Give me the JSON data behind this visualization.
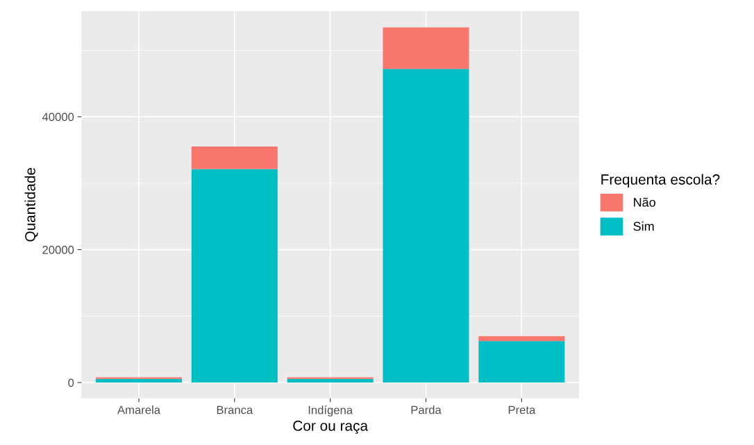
{
  "chart_data": {
    "type": "bar",
    "stacked": true,
    "xlabel": "Cor ou raça",
    "ylabel": "Quantidade",
    "legend_title": "Frequenta escola?",
    "categories": [
      "Amarela",
      "Branca",
      "Indígena",
      "Parda",
      "Preta"
    ],
    "series": [
      {
        "name": "Sim",
        "color": "#00bfc4",
        "values": [
          550,
          32130,
          550,
          47200,
          6240
        ]
      },
      {
        "name": "Não",
        "color": "#f8766d",
        "values": [
          250,
          3390,
          250,
          6220,
          740
        ]
      }
    ],
    "ylim": [
      -2360,
      55880
    ],
    "yticks": [
      0,
      20000,
      40000
    ],
    "grid": true,
    "legend": "right"
  }
}
